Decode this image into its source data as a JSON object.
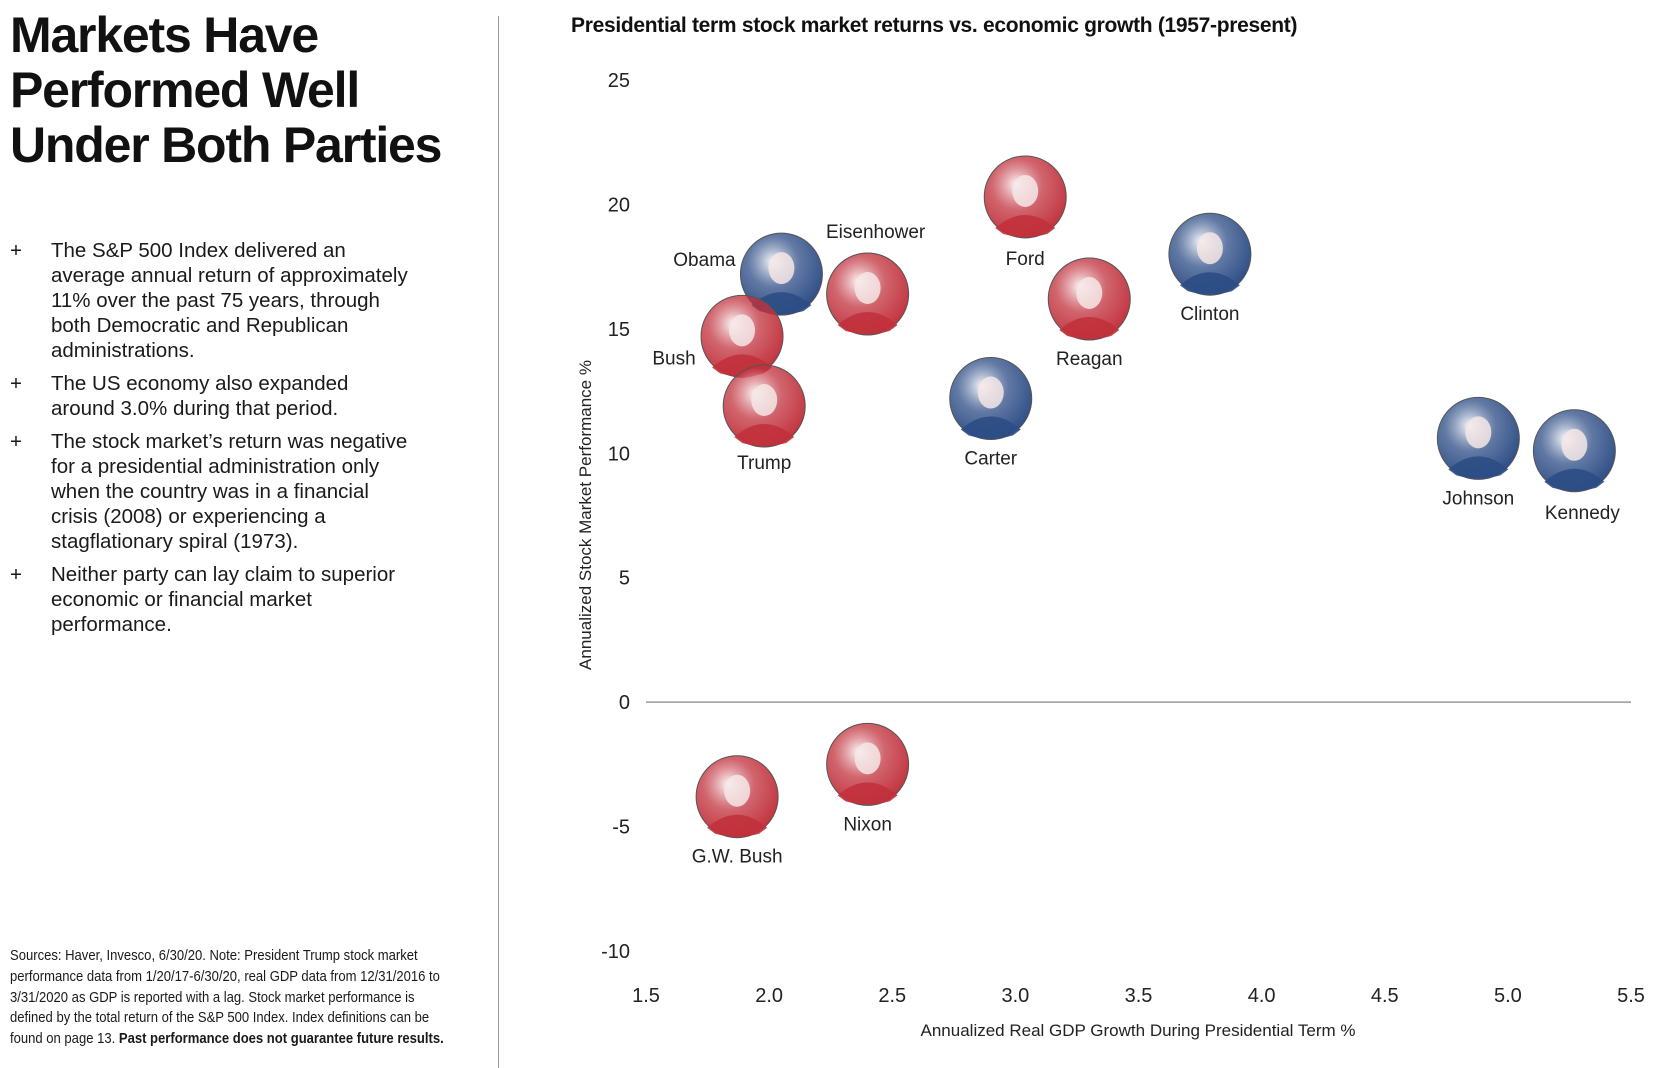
{
  "left_panel": {
    "title_lines": [
      "Markets Have",
      "Performed Well",
      "Under Both Parties"
    ],
    "bullet_symbol": "+",
    "bullets": [
      "The S&P 500 Index delivered an average annual return of approximately 11% over the past 75 years, through both Democratic and Republican administrations.",
      "The US economy also expanded around 3.0% during that period.",
      "The stock market’s return was negative for a presidential administration only when the country was in a financial crisis (2008) or experiencing a stagflationary spiral (1973).",
      "Neither party can lay claim to superior economic or financial market performance."
    ],
    "sources_text": "Sources: Haver, Invesco, 6/30/20. Note: President Trump stock market performance data from 1/20/17-6/30/20, real GDP data from 12/31/2016 to 3/31/2020 as GDP is reported with a lag. Stock market performance is defined by the total return of the S&P 500 Index. Index definitions can be found on page 13.",
    "sources_bold": "Past performance does not guarantee future results."
  },
  "chart_data": {
    "type": "scatter",
    "title": "Presidential term stock market returns vs. economic growth (1957-present)",
    "xlabel": "Annualized Real GDP Growth During Presidential Term %",
    "ylabel": "Annualized Stock Market Performance %",
    "xlim": [
      1.5,
      5.5
    ],
    "ylim": [
      -10,
      25
    ],
    "x_ticks": [
      "1.5",
      "2.0",
      "2.5",
      "3.0",
      "3.5",
      "4.0",
      "4.5",
      "5.0",
      "5.5"
    ],
    "y_ticks": [
      "25",
      "20",
      "15",
      "10",
      "5",
      "0",
      "-5",
      "-10"
    ],
    "grid": false,
    "zero_line": true,
    "party_colors": {
      "Republican": "#c1313c",
      "Democrat": "#2c4c85"
    },
    "points": [
      {
        "name": "Obama",
        "x": 2.05,
        "y": 17.2,
        "party": "Democrat"
      },
      {
        "name": "Eisenhower",
        "x": 2.4,
        "y": 16.4,
        "party": "Republican"
      },
      {
        "name": "Bush",
        "x": 1.89,
        "y": 14.7,
        "party": "Republican"
      },
      {
        "name": "Trump",
        "x": 1.98,
        "y": 11.9,
        "party": "Republican"
      },
      {
        "name": "Ford",
        "x": 3.04,
        "y": 20.3,
        "party": "Republican"
      },
      {
        "name": "Reagan",
        "x": 3.3,
        "y": 16.2,
        "party": "Republican"
      },
      {
        "name": "Clinton",
        "x": 3.79,
        "y": 18.0,
        "party": "Democrat"
      },
      {
        "name": "Carter",
        "x": 2.9,
        "y": 12.2,
        "party": "Democrat"
      },
      {
        "name": "Johnson",
        "x": 4.88,
        "y": 10.6,
        "party": "Democrat"
      },
      {
        "name": "Kennedy",
        "x": 5.27,
        "y": 10.1,
        "party": "Democrat"
      },
      {
        "name": "G.W. Bush",
        "x": 1.87,
        "y": -3.8,
        "party": "Republican"
      },
      {
        "name": "Nixon",
        "x": 2.4,
        "y": -2.5,
        "party": "Republican"
      }
    ]
  }
}
